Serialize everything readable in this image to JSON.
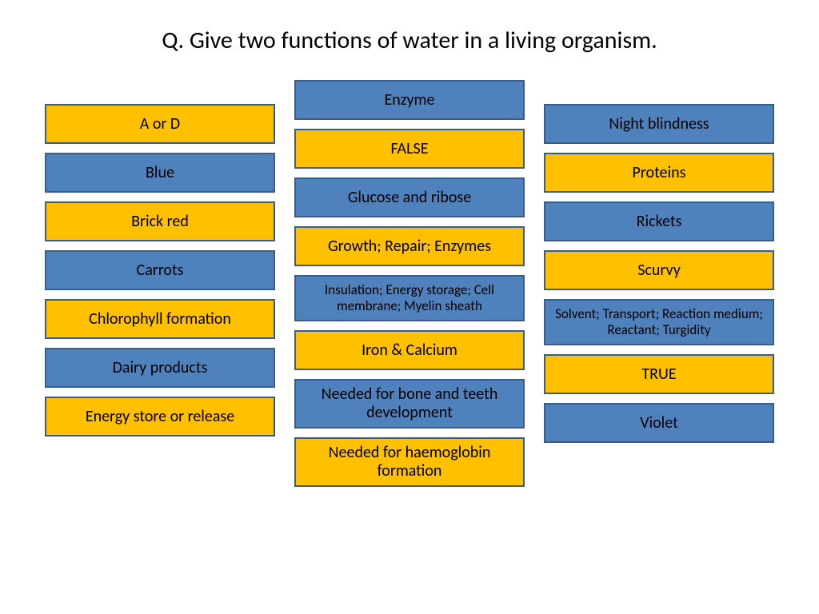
{
  "title": "Q. Give two functions of water in a living organism.",
  "colors": {
    "yellow_fill": "#ffc000",
    "blue_fill": "#4f81bd",
    "border": "#385d8a",
    "background": "#ffffff",
    "text": "#000000"
  },
  "box_fontsize": 20,
  "box_small_fontsize": 17,
  "title_fontsize": 30,
  "columns": {
    "left": [
      {
        "label": "A or D",
        "color": "yellow"
      },
      {
        "label": "Blue",
        "color": "blue"
      },
      {
        "label": "Brick red",
        "color": "yellow"
      },
      {
        "label": "Carrots",
        "color": "blue"
      },
      {
        "label": "Chlorophyll formation",
        "color": "yellow"
      },
      {
        "label": "Dairy products",
        "color": "blue"
      },
      {
        "label": "Energy store or release",
        "color": "yellow"
      }
    ],
    "middle": [
      {
        "label": "Enzyme",
        "color": "blue"
      },
      {
        "label": "FALSE",
        "color": "yellow"
      },
      {
        "label": "Glucose and ribose",
        "color": "blue"
      },
      {
        "label": "Growth; Repair; Enzymes",
        "color": "yellow"
      },
      {
        "label": "Insulation; Energy storage; Cell membrane; Myelin sheath",
        "color": "blue",
        "small": true,
        "tall": true
      },
      {
        "label": "Iron & Calcium",
        "color": "yellow"
      },
      {
        "label": "Needed for bone and teeth development",
        "color": "blue",
        "tall": true
      },
      {
        "label": "Needed for haemoglobin formation",
        "color": "yellow",
        "tall": true
      }
    ],
    "right": [
      {
        "label": "Night blindness",
        "color": "blue"
      },
      {
        "label": "Proteins",
        "color": "yellow"
      },
      {
        "label": "Rickets",
        "color": "blue"
      },
      {
        "label": "Scurvy",
        "color": "yellow"
      },
      {
        "label": "Solvent; Transport; Reaction medium; Reactant; Turgidity",
        "color": "blue",
        "small": true,
        "tall": true
      },
      {
        "label": "TRUE",
        "color": "yellow"
      },
      {
        "label": "Violet",
        "color": "blue"
      }
    ]
  }
}
